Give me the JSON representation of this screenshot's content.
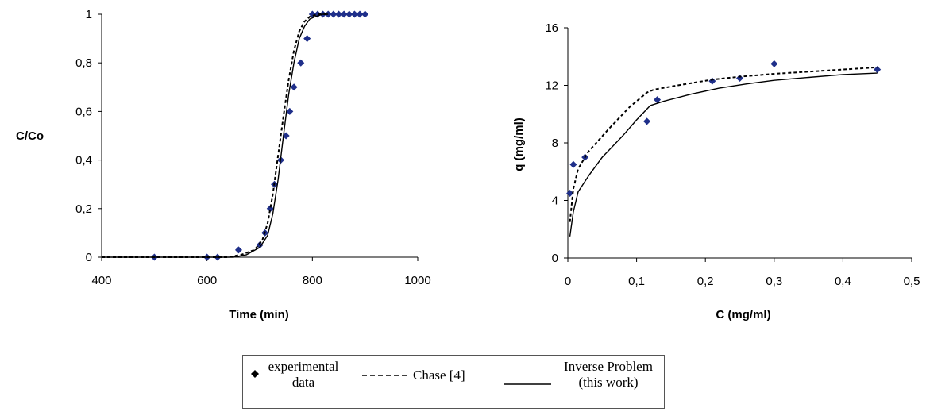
{
  "chart_data": [
    {
      "type": "scatter",
      "xlabel": "Time (min)",
      "ylabel": "C/Co",
      "xlim": [
        400,
        1000
      ],
      "ylim": [
        0,
        1
      ],
      "xticks": [
        "400",
        "600",
        "800",
        "1000"
      ],
      "yticks": [
        "0",
        "0,2",
        "0,4",
        "0,6",
        "0,8",
        "1"
      ],
      "series": [
        {
          "style": "markers",
          "x": [
            500,
            600,
            620,
            660,
            700,
            710,
            720,
            728,
            740,
            750,
            757,
            765,
            778,
            790,
            800,
            810,
            820,
            830,
            840,
            850,
            860,
            870,
            880,
            890,
            900
          ],
          "y": [
            0,
            0,
            0,
            0.03,
            0.05,
            0.1,
            0.2,
            0.3,
            0.4,
            0.5,
            0.6,
            0.7,
            0.8,
            0.9,
            1,
            1,
            1,
            1,
            1,
            1,
            1,
            1,
            1,
            1,
            1
          ]
        },
        {
          "style": "dashed",
          "x": [
            400,
            640,
            665,
            690,
            705,
            715,
            725,
            735,
            745,
            755,
            765,
            775,
            785,
            795,
            810,
            830
          ],
          "y": [
            0,
            0,
            0.01,
            0.03,
            0.07,
            0.14,
            0.26,
            0.42,
            0.58,
            0.73,
            0.85,
            0.93,
            0.97,
            0.99,
            1,
            1
          ]
        },
        {
          "style": "solid",
          "x": [
            400,
            650,
            675,
            700,
            715,
            725,
            735,
            745,
            755,
            765,
            775,
            785,
            795,
            805,
            820,
            830
          ],
          "y": [
            0,
            0,
            0.01,
            0.04,
            0.09,
            0.18,
            0.32,
            0.5,
            0.67,
            0.8,
            0.9,
            0.95,
            0.98,
            0.99,
            1,
            1
          ]
        }
      ]
    },
    {
      "type": "scatter",
      "xlabel": "C (mg/ml)",
      "ylabel": "q (mg/ml)",
      "xlim": [
        0,
        0.5
      ],
      "ylim": [
        0,
        16
      ],
      "xticks": [
        "0",
        "0,1",
        "0,2",
        "0,3",
        "0,4",
        "0,5"
      ],
      "yticks": [
        "0",
        "4",
        "8",
        "12",
        "16"
      ],
      "series": [
        {
          "style": "markers",
          "x": [
            0.003,
            0.008,
            0.025,
            0.115,
            0.13,
            0.21,
            0.25,
            0.3,
            0.45
          ],
          "y": [
            4.5,
            6.5,
            7.0,
            9.5,
            11.0,
            12.3,
            12.5,
            13.5,
            13.1
          ]
        },
        {
          "style": "dashed",
          "x": [
            0.003,
            0.008,
            0.015,
            0.03,
            0.06,
            0.09,
            0.115,
            0.125,
            0.16,
            0.21,
            0.25,
            0.3,
            0.35,
            0.4,
            0.45
          ],
          "y": [
            2.5,
            4.8,
            6.2,
            7.4,
            9.0,
            10.5,
            11.5,
            11.7,
            12.0,
            12.4,
            12.6,
            12.8,
            12.95,
            13.1,
            13.25
          ]
        },
        {
          "style": "solid",
          "x": [
            0.003,
            0.008,
            0.015,
            0.03,
            0.05,
            0.08,
            0.1,
            0.12,
            0.14,
            0.18,
            0.22,
            0.26,
            0.3,
            0.35,
            0.4,
            0.45
          ],
          "y": [
            1.5,
            3.2,
            4.6,
            5.7,
            7.0,
            8.5,
            9.6,
            10.6,
            10.9,
            11.4,
            11.8,
            12.1,
            12.35,
            12.55,
            12.75,
            12.85
          ]
        }
      ]
    }
  ],
  "legend": {
    "experimental_line1": "experimental",
    "experimental_line2": "data",
    "chase_label": "Chase  [4]",
    "inverse_line1": "Inverse Problem",
    "inverse_line2": "(this work)"
  },
  "colors": {
    "marker": "#1f2f8a",
    "line": "#000000"
  }
}
